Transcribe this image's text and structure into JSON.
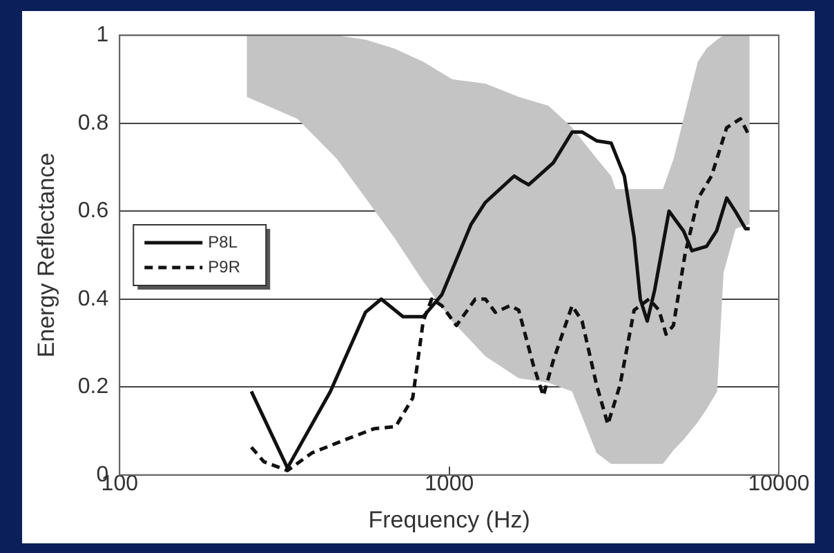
{
  "chart_data": {
    "type": "line",
    "xlabel": "Frequency (Hz)",
    "ylabel": "Energy Reflectance",
    "log": "x",
    "xlim": [
      100,
      10000
    ],
    "xticks": [
      100,
      1000,
      10000
    ],
    "ylim": [
      0,
      1
    ],
    "yticks": [
      0,
      0.2,
      0.4,
      0.6,
      0.8,
      1
    ],
    "grid": "y",
    "legend": "left",
    "marker": "none",
    "series": [
      {
        "color": "#c4c4c4",
        "x": [
          243,
          346,
          455,
          557,
          681,
          834,
          1021,
          1288,
          1625,
          2000,
          2360,
          2800,
          3100,
          3200,
          4450,
          4800,
          5140,
          5680,
          6040,
          6500,
          6800,
          7400,
          8160
        ],
        "lower": [
          0.86,
          0.81,
          0.72,
          0.63,
          0.54,
          0.44,
          0.35,
          0.27,
          0.22,
          0.21,
          0.19,
          0.05,
          0.025,
          0.025,
          0.025,
          0.057,
          0.08,
          0.12,
          0.15,
          0.19,
          0.46,
          0.56,
          0.57
        ],
        "upper": [
          1,
          1,
          1,
          0.99,
          0.97,
          0.94,
          0.9,
          0.89,
          0.86,
          0.84,
          0.79,
          0.72,
          0.68,
          0.65,
          0.65,
          0.72,
          0.81,
          0.94,
          0.97,
          0.99,
          1,
          1,
          1
        ],
        "values": [
          null,
          null,
          null,
          null,
          null,
          null,
          null,
          null,
          null,
          null,
          null,
          null,
          null,
          null,
          null,
          null,
          null,
          null,
          null,
          null,
          null,
          null,
          null
        ]
      },
      {
        "name": "P8L",
        "color": "#111111",
        "line_style": "solid",
        "x": [
          251,
          323,
          436,
          557,
          622,
          724,
          834,
          950,
          1165,
          1288,
          1575,
          1650,
          1743,
          2069,
          2360,
          2530,
          2800,
          3100,
          3400,
          3640,
          3800,
          3990,
          4200,
          4645,
          5140,
          5450,
          6040,
          6475,
          6950,
          7380,
          7930,
          8160
        ],
        "values": [
          0.19,
          0.016,
          0.19,
          0.37,
          0.4,
          0.36,
          0.36,
          0.41,
          0.57,
          0.62,
          0.68,
          0.67,
          0.66,
          0.71,
          0.78,
          0.78,
          0.76,
          0.755,
          0.68,
          0.54,
          0.4,
          0.35,
          0.42,
          0.6,
          0.555,
          0.51,
          0.52,
          0.555,
          0.63,
          0.6,
          0.56,
          0.56
        ]
      },
      {
        "name": "P9R",
        "color": "#111111",
        "line_style": "dashed",
        "x": [
          251,
          274,
          323,
          383,
          483,
          591,
          688,
          775,
          834,
          885,
          950,
          1052,
          1200,
          1288,
          1380,
          1530,
          1625,
          1800,
          1930,
          2069,
          2360,
          2530,
          2800,
          3030,
          3300,
          3640,
          4040,
          4330,
          4550,
          4790,
          5190,
          5700,
          6250,
          6950,
          7650,
          8160
        ],
        "values": [
          0.063,
          0.03,
          0.01,
          0.05,
          0.08,
          0.105,
          0.11,
          0.175,
          0.35,
          0.4,
          0.385,
          0.34,
          0.4,
          0.4,
          0.37,
          0.385,
          0.375,
          0.25,
          0.18,
          0.26,
          0.385,
          0.35,
          0.205,
          0.115,
          0.205,
          0.375,
          0.4,
          0.375,
          0.32,
          0.34,
          0.5,
          0.63,
          0.68,
          0.79,
          0.81,
          0.77
        ]
      }
    ]
  }
}
